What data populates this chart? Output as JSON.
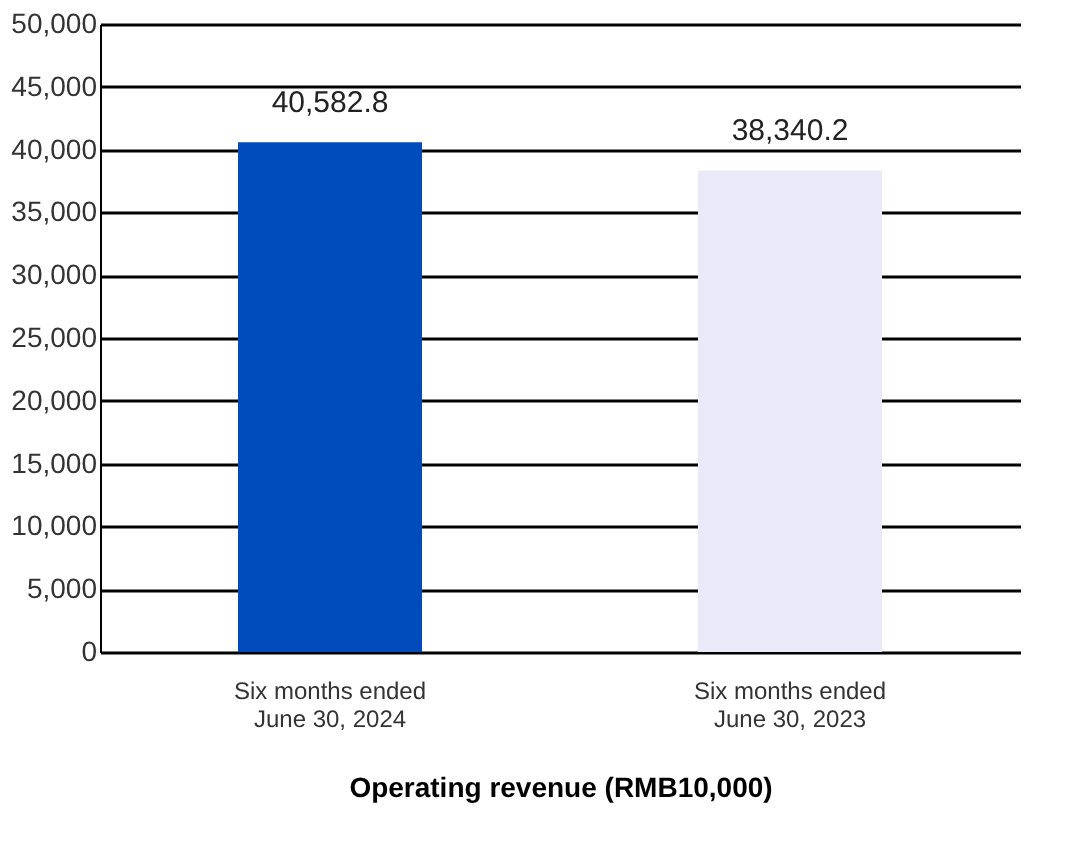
{
  "chart_data": {
    "type": "bar",
    "categories": [
      "Six months ended\nJune 30, 2024",
      "Six months ended\nJune 30, 2023"
    ],
    "values": [
      40582.8,
      38340.2
    ],
    "value_labels": [
      "40,582.8",
      "38,340.2"
    ],
    "colors": [
      "#004bbb",
      "#e9e9f7"
    ],
    "xlabel": "Operating revenue (RMB10,000)",
    "ylim": [
      0,
      50000
    ],
    "yticks": [
      0,
      {
        "value": 5000,
        "label": "5,000"
      },
      {
        "value": 10000,
        "label": "10,000"
      },
      {
        "value": 15000,
        "label": "15,000"
      },
      {
        "value": 20000,
        "label": "20,000"
      },
      {
        "value": 25000,
        "label": "25,000"
      },
      {
        "value": 30000,
        "label": "30,000"
      },
      {
        "value": 35000,
        "label": "35,000"
      },
      {
        "value": 40000,
        "label": "40,000"
      },
      {
        "value": 45000,
        "label": "45,000"
      },
      {
        "value": 50000,
        "label": "50,000"
      }
    ],
    "grid": "y"
  }
}
